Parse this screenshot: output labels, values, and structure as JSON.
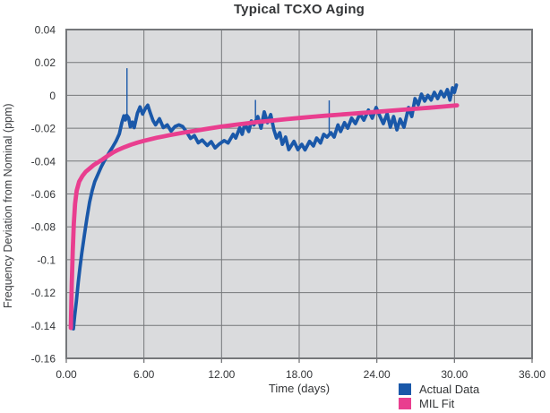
{
  "colors": {
    "page_bg": "#FFFFFF",
    "plot_bg": "#DADBDD",
    "gridline": "#75777A",
    "text": "#323437"
  },
  "chart_data": {
    "type": "line",
    "title": "Typical TCXO Aging",
    "xlabel": "Time (days)",
    "ylabel": "Frequency Deviation from Nominal (ppm)",
    "xlim": [
      0,
      36
    ],
    "ylim": [
      -0.16,
      0.04
    ],
    "grid": true,
    "legend_position": "bottom-right",
    "x_ticks": [
      "0.00",
      "6.00",
      "12.00",
      "18.00",
      "24.00",
      "30.00",
      "36.00"
    ],
    "y_ticks": [
      "0.04",
      "0.02",
      "0",
      "-0.02",
      "-0.04",
      "-0.06",
      "-0.08",
      "-0.1",
      "-0.12",
      "-0.14",
      "-0.16"
    ],
    "series": [
      {
        "name": "Actual Data",
        "color": "#1A58A9",
        "width": 3.8,
        "points": [
          [
            0.55,
            -0.142
          ],
          [
            0.65,
            -0.134
          ],
          [
            0.78,
            -0.125
          ],
          [
            0.92,
            -0.114
          ],
          [
            1.05,
            -0.105
          ],
          [
            1.2,
            -0.096
          ],
          [
            1.4,
            -0.085
          ],
          [
            1.6,
            -0.0745
          ],
          [
            1.8,
            -0.065
          ],
          [
            2.0,
            -0.058
          ],
          [
            2.2,
            -0.0525
          ],
          [
            2.45,
            -0.048
          ],
          [
            2.7,
            -0.0435
          ],
          [
            3.0,
            -0.039
          ],
          [
            3.3,
            -0.035
          ],
          [
            3.6,
            -0.0312
          ],
          [
            3.85,
            -0.0278
          ],
          [
            4.1,
            -0.0235
          ],
          [
            4.3,
            -0.0165
          ],
          [
            4.45,
            -0.0125
          ],
          [
            4.57,
            -0.015
          ],
          [
            4.67,
            -0.0122
          ],
          [
            4.82,
            -0.0137
          ],
          [
            4.95,
            -0.0192
          ],
          [
            5.1,
            -0.0163
          ],
          [
            5.25,
            -0.0196
          ],
          [
            5.5,
            -0.0109
          ],
          [
            5.7,
            -0.0071
          ],
          [
            5.9,
            -0.0114
          ],
          [
            6.1,
            -0.0082
          ],
          [
            6.3,
            -0.006
          ],
          [
            6.5,
            -0.0109
          ],
          [
            6.7,
            -0.0153
          ],
          [
            6.9,
            -0.018
          ],
          [
            7.2,
            -0.0142
          ],
          [
            7.5,
            -0.0196
          ],
          [
            7.8,
            -0.018
          ],
          [
            8.1,
            -0.0218
          ],
          [
            8.4,
            -0.019
          ],
          [
            8.7,
            -0.018
          ],
          [
            9.0,
            -0.019
          ],
          [
            9.3,
            -0.0223
          ],
          [
            9.6,
            -0.0262
          ],
          [
            9.9,
            -0.0245
          ],
          [
            10.2,
            -0.0289
          ],
          [
            10.5,
            -0.0272
          ],
          [
            10.9,
            -0.0305
          ],
          [
            11.2,
            -0.0282
          ],
          [
            11.5,
            -0.032
          ],
          [
            11.8,
            -0.0298
          ],
          [
            12.2,
            -0.0275
          ],
          [
            12.5,
            -0.029
          ],
          [
            12.9,
            -0.0237
          ],
          [
            13.1,
            -0.026
          ],
          [
            13.4,
            -0.0198
          ],
          [
            13.6,
            -0.0237
          ],
          [
            13.8,
            -0.0172
          ],
          [
            14.1,
            -0.022
          ],
          [
            14.3,
            -0.0156
          ],
          [
            14.5,
            -0.018
          ],
          [
            14.8,
            -0.0129
          ],
          [
            15.05,
            -0.02
          ],
          [
            15.3,
            -0.0101
          ],
          [
            15.55,
            -0.0166
          ],
          [
            15.8,
            -0.0117
          ],
          [
            16.05,
            -0.021
          ],
          [
            16.25,
            -0.026
          ],
          [
            16.5,
            -0.0227
          ],
          [
            16.7,
            -0.0298
          ],
          [
            16.95,
            -0.0254
          ],
          [
            17.2,
            -0.033
          ],
          [
            17.6,
            -0.028
          ],
          [
            17.9,
            -0.033
          ],
          [
            18.2,
            -0.0298
          ],
          [
            18.45,
            -0.0332
          ],
          [
            18.8,
            -0.028
          ],
          [
            19.1,
            -0.0308
          ],
          [
            19.35,
            -0.026
          ],
          [
            19.65,
            -0.029
          ],
          [
            19.9,
            -0.0237
          ],
          [
            20.15,
            -0.0254
          ],
          [
            20.45,
            -0.0227
          ],
          [
            20.7,
            -0.0254
          ],
          [
            21.0,
            -0.018
          ],
          [
            21.2,
            -0.022
          ],
          [
            21.5,
            -0.0166
          ],
          [
            21.75,
            -0.02
          ],
          [
            22.05,
            -0.0139
          ],
          [
            22.35,
            -0.0172
          ],
          [
            22.7,
            -0.0112
          ],
          [
            23.0,
            -0.0151
          ],
          [
            23.35,
            -0.009
          ],
          [
            23.65,
            -0.0139
          ],
          [
            23.95,
            -0.0074
          ],
          [
            24.25,
            -0.0129
          ],
          [
            24.5,
            -0.0172
          ],
          [
            24.8,
            -0.0112
          ],
          [
            25.05,
            -0.0194
          ],
          [
            25.3,
            -0.0129
          ],
          [
            25.55,
            -0.021
          ],
          [
            25.8,
            -0.0145
          ],
          [
            26.1,
            -0.0194
          ],
          [
            26.45,
            -0.0074
          ],
          [
            26.7,
            -0.0129
          ],
          [
            26.95,
            -0.002
          ],
          [
            27.2,
            -0.0057
          ],
          [
            27.45,
            0.0007
          ],
          [
            27.7,
            -0.0035
          ],
          [
            27.95,
            0
          ],
          [
            28.2,
            -0.0029
          ],
          [
            28.45,
            0.0018
          ],
          [
            28.7,
            -0.002
          ],
          [
            28.95,
            0.0024
          ],
          [
            29.2,
            -0.0009
          ],
          [
            29.45,
            0.0035
          ],
          [
            29.65,
            -0.0029
          ],
          [
            29.85,
            0.0046
          ],
          [
            30.0,
            0.0018
          ],
          [
            30.15,
            0.0062
          ]
        ]
      },
      {
        "name": "MIL Fit",
        "color": "#E93E8F",
        "width": 4.8,
        "points": [
          [
            0.35,
            -0.1415
          ],
          [
            0.42,
            -0.115
          ],
          [
            0.5,
            -0.095
          ],
          [
            0.58,
            -0.078
          ],
          [
            0.68,
            -0.066
          ],
          [
            0.8,
            -0.058
          ],
          [
            1.0,
            -0.0525
          ],
          [
            1.25,
            -0.049
          ],
          [
            1.5,
            -0.0465
          ],
          [
            1.8,
            -0.0445
          ],
          [
            2.1,
            -0.0425
          ],
          [
            2.4,
            -0.041
          ],
          [
            2.8,
            -0.039
          ],
          [
            3.2,
            -0.0368
          ],
          [
            3.6,
            -0.0348
          ],
          [
            4.0,
            -0.0332
          ],
          [
            4.5,
            -0.0315
          ],
          [
            5.0,
            -0.03
          ],
          [
            5.5,
            -0.0288
          ],
          [
            6.0,
            -0.0277
          ],
          [
            6.5,
            -0.0267
          ],
          [
            7.0,
            -0.0258
          ],
          [
            7.5,
            -0.025
          ],
          [
            8.0,
            -0.0242
          ],
          [
            9.0,
            -0.0228
          ],
          [
            10.0,
            -0.0215
          ],
          [
            11.0,
            -0.0202
          ],
          [
            12.0,
            -0.019
          ],
          [
            13.0,
            -0.018
          ],
          [
            14.0,
            -0.017
          ],
          [
            15.0,
            -0.0161
          ],
          [
            16.0,
            -0.0153
          ],
          [
            17.0,
            -0.0145
          ],
          [
            18.0,
            -0.0138
          ],
          [
            19.0,
            -0.0131
          ],
          [
            20.0,
            -0.0124
          ],
          [
            21.0,
            -0.0118
          ],
          [
            22.0,
            -0.0112
          ],
          [
            23.0,
            -0.0106
          ],
          [
            24.0,
            -0.01
          ],
          [
            25.0,
            -0.0094
          ],
          [
            26.0,
            -0.0088
          ],
          [
            27.0,
            -0.0082
          ],
          [
            28.0,
            -0.0076
          ],
          [
            29.0,
            -0.0069
          ],
          [
            30.2,
            -0.0061
          ]
        ]
      }
    ],
    "spikes": [
      {
        "t": 4.69,
        "from": -0.0125,
        "to": 0.0165
      },
      {
        "t": 14.62,
        "from": -0.017,
        "to": -0.0028
      },
      {
        "t": 20.32,
        "from": -0.025,
        "to": -0.0031
      }
    ]
  }
}
